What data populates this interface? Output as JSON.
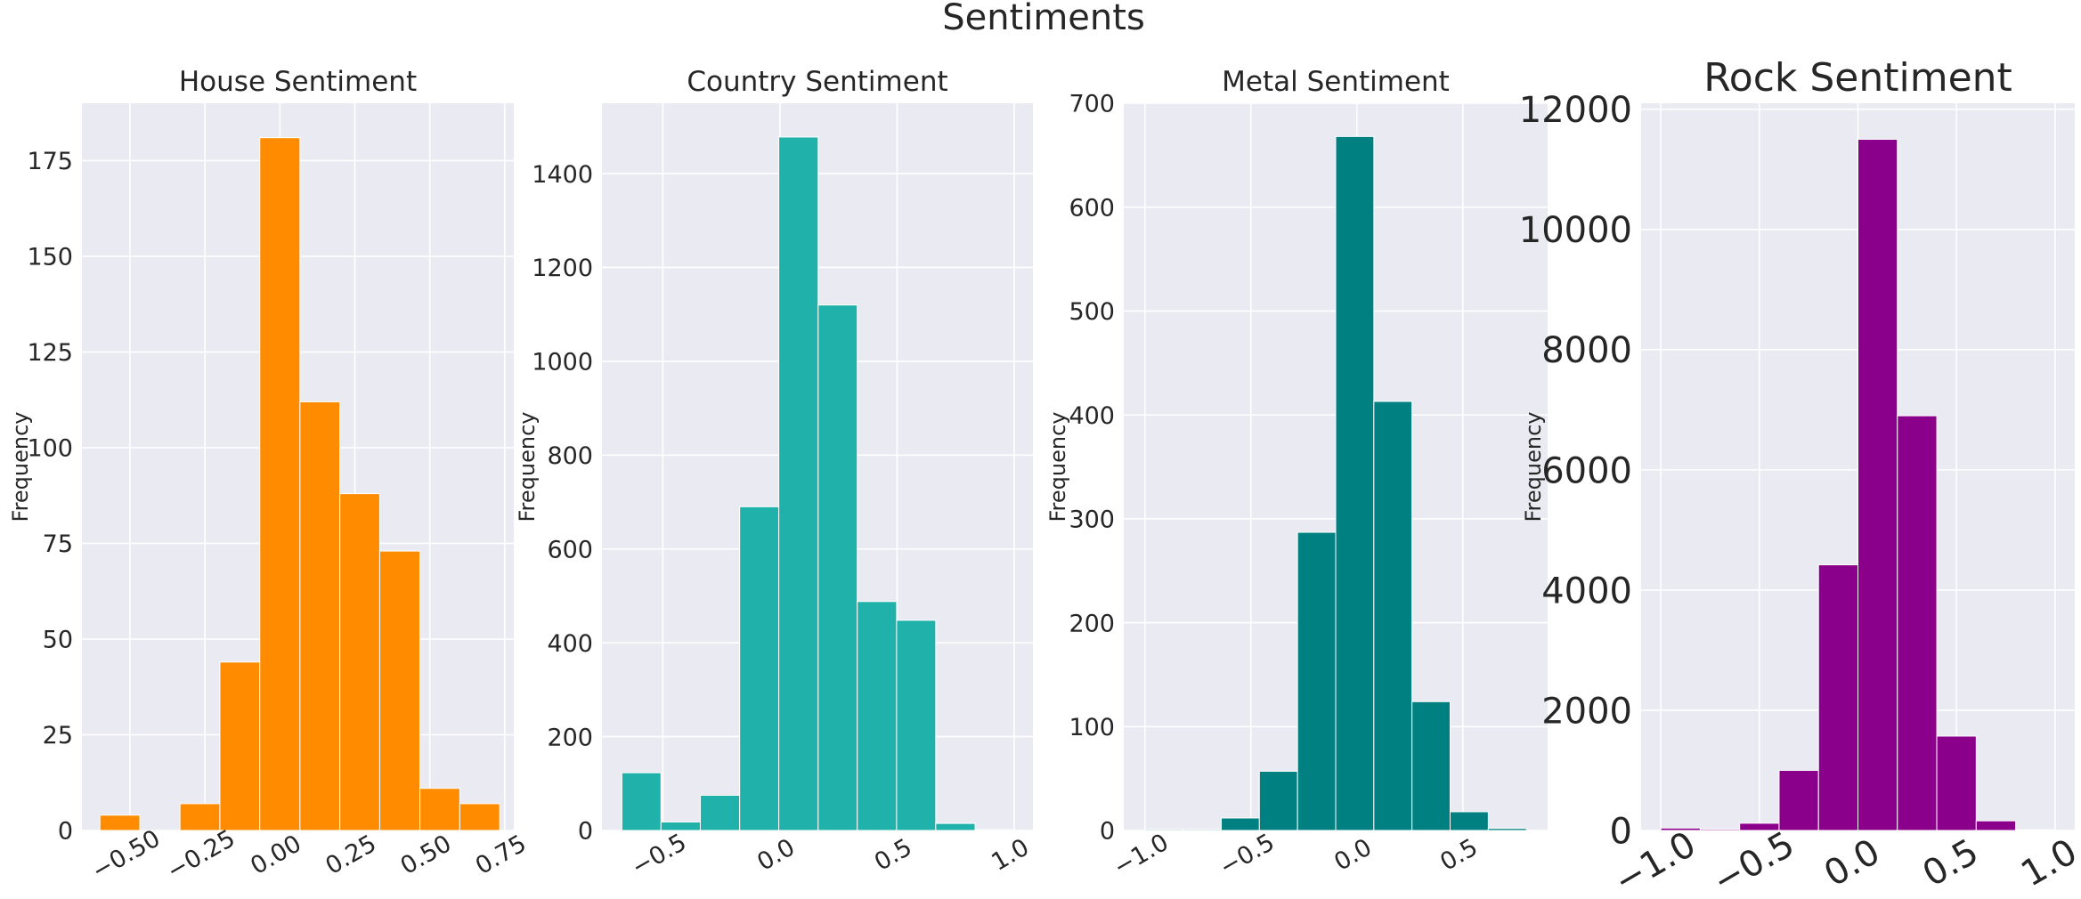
{
  "figure": {
    "title": "Sentiments"
  },
  "colors": {
    "background": "#ffffff",
    "plot_bg": "#eaeaf2",
    "grid": "#ffffff",
    "text": "#262626"
  },
  "chart_data": [
    {
      "type": "histogram",
      "title": "House Sentiment",
      "xlabel": "",
      "ylabel": "Frequency",
      "color": "#ff8c00",
      "grid": true,
      "xlim": [
        -0.66,
        0.78
      ],
      "ylim": [
        0,
        190
      ],
      "xticks": [
        -0.5,
        -0.25,
        0.0,
        0.25,
        0.5,
        0.75
      ],
      "xtick_labels": [
        "−0.50",
        "−0.25",
        "0.00",
        "0.25",
        "0.50",
        "0.75"
      ],
      "yticks": [
        0,
        25,
        50,
        75,
        100,
        125,
        150,
        175
      ],
      "ytick_labels": [
        "0",
        "25",
        "50",
        "75",
        "100",
        "125",
        "150",
        "175"
      ],
      "bin_edges": [
        -0.6,
        -0.467,
        -0.333,
        -0.2,
        -0.067,
        0.067,
        0.2,
        0.333,
        0.467,
        0.6,
        0.733
      ],
      "values": [
        4,
        0,
        7,
        44,
        181,
        112,
        88,
        73,
        11,
        7
      ]
    },
    {
      "type": "histogram",
      "title": "Country Sentiment",
      "xlabel": "",
      "ylabel": "Frequency",
      "color": "#20b2aa",
      "grid": true,
      "xlim": [
        -0.76,
        1.08
      ],
      "ylim": [
        0,
        1550
      ],
      "xticks": [
        -0.5,
        0.0,
        0.5,
        1.0
      ],
      "xtick_labels": [
        "−0.5",
        "0.0",
        "0.5",
        "1.0"
      ],
      "yticks": [
        0,
        200,
        400,
        600,
        800,
        1000,
        1200,
        1400
      ],
      "ytick_labels": [
        "0",
        "200",
        "400",
        "600",
        "800",
        "1000",
        "1200",
        "1400"
      ],
      "bin_edges": [
        -0.675,
        -0.508,
        -0.34,
        -0.172,
        -0.005,
        0.163,
        0.33,
        0.498,
        0.665,
        0.833,
        1.0
      ],
      "values": [
        123,
        18,
        75,
        690,
        1478,
        1120,
        488,
        448,
        15,
        2
      ]
    },
    {
      "type": "histogram",
      "title": "Metal Sentiment",
      "xlabel": "",
      "ylabel": "Frequency",
      "color": "#008080",
      "grid": true,
      "xlim": [
        -1.1,
        0.9
      ],
      "ylim": [
        0,
        700
      ],
      "xticks": [
        -1.0,
        -0.5,
        0.0,
        0.5
      ],
      "xtick_labels": [
        "−1.0",
        "−0.5",
        "0.0",
        "0.5"
      ],
      "yticks": [
        0,
        100,
        200,
        300,
        400,
        500,
        600,
        700
      ],
      "ytick_labels": [
        "0",
        "100",
        "200",
        "300",
        "400",
        "500",
        "600",
        "700"
      ],
      "bin_edges": [
        -1.0,
        -0.82,
        -0.64,
        -0.46,
        -0.28,
        -0.1,
        0.08,
        0.26,
        0.44,
        0.62,
        0.8
      ],
      "values": [
        1,
        1,
        12,
        57,
        287,
        668,
        413,
        124,
        18,
        2
      ]
    },
    {
      "type": "histogram",
      "title": "Rock Sentiment",
      "xlabel": "",
      "ylabel": "Frequency",
      "color": "#8b008b",
      "grid": true,
      "xlim": [
        -1.1,
        1.1
      ],
      "ylim": [
        0,
        12100
      ],
      "xticks": [
        -1.0,
        -0.5,
        0.0,
        0.5,
        1.0
      ],
      "xtick_labels": [
        "−1.0",
        "−0.5",
        "0.0",
        "0.5",
        "1.0"
      ],
      "yticks": [
        0,
        2000,
        4000,
        6000,
        8000,
        10000,
        12000
      ],
      "ytick_labels": [
        "0",
        "2000",
        "4000",
        "6000",
        "8000",
        "10000",
        "12000"
      ],
      "bin_edges": [
        -1.0,
        -0.8,
        -0.6,
        -0.4,
        -0.2,
        0.0,
        0.2,
        0.4,
        0.6,
        0.8,
        1.0
      ],
      "values": [
        40,
        20,
        120,
        1000,
        4420,
        11500,
        6900,
        1570,
        160,
        10
      ]
    }
  ]
}
